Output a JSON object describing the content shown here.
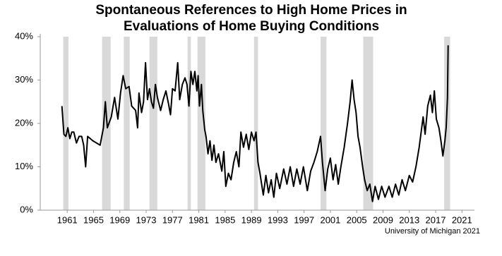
{
  "chart_data": {
    "type": "line",
    "title": [
      "Spontaneous References to High Home Prices in",
      "Evaluations of Home Buying Conditions"
    ],
    "source": "University of Michigan 2021",
    "color": "#000000",
    "shade_color": "#d9d9d9",
    "x": [
      1960.2,
      1960.5,
      1960.8,
      1961.1,
      1961.4,
      1961.7,
      1962.0,
      1962.4,
      1962.8,
      1963.2,
      1963.5,
      1963.8,
      1964.1,
      1964.9,
      1966.0,
      1966.5,
      1966.8,
      1967.1,
      1967.7,
      1968.2,
      1968.7,
      1969.1,
      1969.5,
      1969.9,
      1970.4,
      1970.8,
      1971.4,
      1971.7,
      1971.9,
      1972.3,
      1972.6,
      1972.9,
      1973.2,
      1973.5,
      1973.8,
      1974.1,
      1974.4,
      1974.7,
      1975.2,
      1975.6,
      1976.0,
      1976.4,
      1976.7,
      1977.0,
      1977.4,
      1977.8,
      1978.1,
      1978.5,
      1978.9,
      1979.2,
      1979.5,
      1979.8,
      1980.1,
      1980.4,
      1980.7,
      1980.9,
      1981.1,
      1981.4,
      1981.6,
      1981.9,
      1982.1,
      1982.4,
      1982.7,
      1983.0,
      1983.3,
      1983.6,
      1984.0,
      1984.5,
      1984.8,
      1985.1,
      1985.5,
      1985.9,
      1986.3,
      1986.7,
      1987.1,
      1987.4,
      1987.8,
      1988.2,
      1988.6,
      1989.0,
      1989.4,
      1989.7,
      1990.0,
      1990.3,
      1990.8,
      1991.2,
      1991.6,
      1992.0,
      1992.4,
      1992.8,
      1993.3,
      1993.9,
      1994.4,
      1994.9,
      1995.4,
      1995.9,
      1996.4,
      1996.9,
      1997.5,
      1998.0,
      1998.5,
      1999.0,
      1999.5,
      1999.8,
      2000.2,
      2000.6,
      2001.0,
      2001.4,
      2001.8,
      2002.2,
      2002.6,
      2003.1,
      2003.6,
      2004.0,
      2004.3,
      2004.6,
      2004.9,
      2005.2,
      2005.5,
      2005.9,
      2006.2,
      2006.6,
      2007.0,
      2007.4,
      2007.8,
      2008.3,
      2008.8,
      2009.3,
      2009.9,
      2010.4,
      2010.9,
      2011.4,
      2011.9,
      2012.4,
      2013.0,
      2013.5,
      2014.0,
      2014.5,
      2015.1,
      2015.4,
      2015.8,
      2016.2,
      2016.5,
      2016.8,
      2017.1,
      2017.5,
      2017.8,
      2018.1,
      2018.4,
      2018.6,
      2018.8,
      2018.9
    ],
    "values": [
      24,
      17.5,
      17,
      19,
      16.5,
      18,
      18,
      15.5,
      17,
      17,
      15,
      10,
      17,
      16,
      15,
      19,
      25,
      19,
      21.5,
      26,
      21,
      27,
      31,
      28,
      28.5,
      24,
      23,
      19,
      27,
      22.5,
      25,
      34,
      25.5,
      28,
      25,
      23.5,
      29,
      26,
      23,
      25.5,
      27.5,
      24.5,
      22,
      28,
      27.5,
      34,
      25.5,
      29,
      30.5,
      29,
      24,
      32,
      29,
      32,
      27.5,
      31,
      24,
      29,
      23,
      18.5,
      17,
      13,
      16,
      11.5,
      15,
      11,
      13,
      9,
      13.5,
      5.5,
      8.5,
      7,
      11,
      13.5,
      10,
      18,
      14.5,
      17.5,
      14,
      18,
      16,
      18,
      11,
      8.5,
      3.5,
      8,
      4,
      7,
      3,
      8.5,
      5,
      9.5,
      6,
      10,
      5.5,
      9.5,
      6,
      10,
      4.5,
      9,
      11,
      13.5,
      17,
      11,
      4.5,
      9.5,
      12,
      7,
      10.5,
      6,
      10,
      14.5,
      20,
      25,
      30,
      25.5,
      22.5,
      17,
      14.5,
      10,
      7,
      4.5,
      6,
      2,
      5.5,
      2.5,
      5.5,
      3,
      5.5,
      3,
      6,
      3.5,
      7,
      4.5,
      8,
      6.5,
      10,
      14.5,
      21.5,
      17.5,
      24,
      26.5,
      22.5,
      27.5,
      21,
      19,
      16,
      12.5,
      16,
      19,
      26,
      38
    ],
    "shaded_periods": [
      [
        1960.4,
        1961.2
      ],
      [
        1966.3,
        1967.6
      ],
      [
        1969.6,
        1970.5
      ],
      [
        1973.5,
        1974.7
      ],
      [
        1979.3,
        1979.8
      ],
      [
        1980.8,
        1982.0
      ],
      [
        1989.4,
        1990.0
      ],
      [
        1999.5,
        2000.4
      ],
      [
        2006.0,
        2007.5
      ],
      [
        2018.3,
        2019.2
      ]
    ],
    "xlim": [
      1956.9,
      2022.9
    ],
    "xticks": [
      1961,
      1965,
      1969,
      1973,
      1977,
      1981,
      1985,
      1989,
      1993,
      1997,
      2001,
      2005,
      2009,
      2013,
      2017,
      2021
    ],
    "ylim": [
      0,
      40
    ],
    "yticks": [
      {
        "value": 0,
        "label": "0%"
      },
      {
        "value": 10,
        "label": "10%"
      },
      {
        "value": 20,
        "label": "20%"
      },
      {
        "value": 30,
        "label": "30%"
      },
      {
        "value": 40,
        "label": "40%"
      }
    ]
  }
}
